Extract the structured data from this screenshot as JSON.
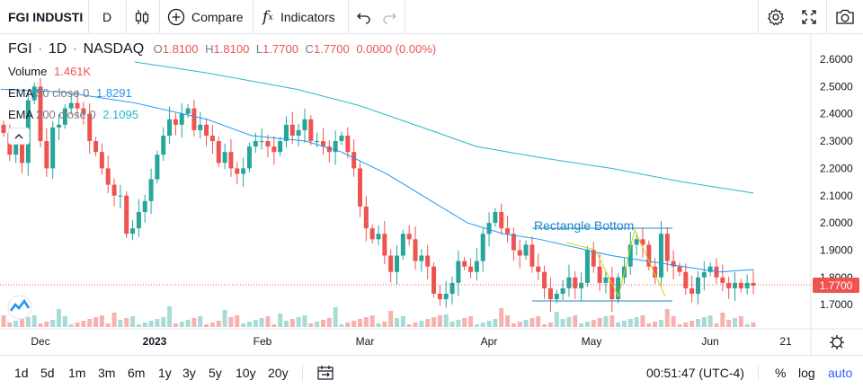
{
  "toolbar": {
    "symbol": "FGI INDUSTI",
    "interval": "D",
    "compare_label": "Compare",
    "indicators_label": "Indicators"
  },
  "legend": {
    "symbol": "FGI",
    "interval": "1D",
    "exchange": "NASDAQ",
    "o_label": "O",
    "o_value": "1.8100",
    "h_label": "H",
    "h_value": "1.8100",
    "l_label": "L",
    "l_value": "1.7700",
    "c_label": "C",
    "c_value": "1.7700",
    "change": "0.0000 (0.00%)",
    "volume_label": "Volume",
    "volume_value": "1.461K",
    "ema50_label": "EMA",
    "ema50_params": "50 close 0",
    "ema50_value": "1.8291",
    "ema200_label": "EMA",
    "ema200_params": "200 close 0",
    "ema200_value": "2.1095"
  },
  "price_badge": "1.7700",
  "annotation": "Rectangle Bottom",
  "time_labels": [
    "Dec",
    "2023",
    "Feb",
    "Mar",
    "Apr",
    "May",
    "Jun",
    "21"
  ],
  "bottom": {
    "ranges": [
      "1d",
      "5d",
      "1m",
      "3m",
      "6m",
      "1y",
      "3y",
      "5y",
      "10y",
      "20y"
    ],
    "clock": "00:51:47 (UTC-4)",
    "percent": "%",
    "log": "log",
    "auto": "auto"
  },
  "colors": {
    "up": "#26a69a",
    "down": "#ef5350",
    "ema50": "#2196f3",
    "ema200": "#2bb5c9",
    "rectangle": "#1e88c8",
    "pattern": "#d4d400"
  },
  "chart_data": {
    "type": "candlestick",
    "title": "FGI 1D NASDAQ",
    "y_axis": {
      "ticks": [
        "2.6000",
        "2.5000",
        "2.4000",
        "2.3000",
        "2.2000",
        "2.1000",
        "2.0000",
        "1.9000",
        "1.8000",
        "1.7000"
      ],
      "ylim": [
        1.66,
        2.66
      ]
    },
    "x_axis": {
      "ticks": [
        "Dec",
        "2023",
        "Feb",
        "Mar",
        "Apr",
        "May",
        "Jun",
        "21"
      ]
    },
    "candles_close": [
      2.33,
      2.25,
      2.3,
      2.22,
      2.45,
      2.5,
      2.3,
      2.2,
      2.35,
      2.36,
      2.42,
      2.44,
      2.42,
      2.4,
      2.3,
      2.26,
      2.2,
      2.14,
      2.1,
      2.1,
      1.96,
      1.98,
      2.04,
      2.08,
      2.16,
      2.25,
      2.32,
      2.38,
      2.36,
      2.4,
      2.42,
      2.34,
      2.36,
      2.32,
      2.3,
      2.22,
      2.26,
      2.2,
      2.18,
      2.2,
      2.28,
      2.3,
      2.3,
      2.28,
      2.26,
      2.3,
      2.36,
      2.32,
      2.34,
      2.38,
      2.3,
      2.3,
      2.28,
      2.26,
      2.3,
      2.32,
      2.26,
      2.2,
      2.06,
      1.98,
      1.94,
      1.96,
      1.88,
      1.82,
      1.88,
      1.96,
      1.94,
      1.86,
      1.88,
      1.84,
      1.74,
      1.72,
      1.74,
      1.78,
      1.86,
      1.84,
      1.82,
      1.86,
      1.96,
      2.0,
      2.04,
      1.98,
      1.96,
      1.9,
      1.88,
      1.92,
      1.84,
      1.82,
      1.76,
      1.72,
      1.74,
      1.76,
      1.8,
      1.76,
      1.78,
      1.9,
      1.84,
      1.78,
      1.8,
      1.72,
      1.8,
      1.84,
      1.92,
      1.94,
      1.92,
      1.84,
      1.8,
      1.96,
      1.86,
      1.84,
      1.82,
      1.76,
      1.74,
      1.8,
      1.82,
      1.84,
      1.8,
      1.78,
      1.76,
      1.78,
      1.76,
      1.78,
      1.77
    ],
    "ema50": [
      [
        2.49,
        1
      ],
      [
        2.48,
        70
      ],
      [
        2.44,
        150
      ],
      [
        2.38,
        230
      ],
      [
        2.32,
        280
      ],
      [
        2.3,
        340
      ],
      [
        2.26,
        380
      ],
      [
        2.18,
        430
      ],
      [
        2.08,
        480
      ],
      [
        2.0,
        520
      ],
      [
        1.96,
        560
      ],
      [
        1.94,
        600
      ],
      [
        1.91,
        640
      ],
      [
        1.88,
        680
      ],
      [
        1.86,
        720
      ],
      [
        1.84,
        760
      ],
      [
        1.82,
        800
      ],
      [
        1.8291,
        838
      ]
    ],
    "ema200": [
      [
        2.59,
        150
      ],
      [
        2.55,
        230
      ],
      [
        2.49,
        330
      ],
      [
        2.43,
        400
      ],
      [
        2.35,
        470
      ],
      [
        2.28,
        530
      ],
      [
        2.24,
        600
      ],
      [
        2.2,
        680
      ],
      [
        2.15,
        760
      ],
      [
        2.1095,
        838
      ]
    ]
  }
}
